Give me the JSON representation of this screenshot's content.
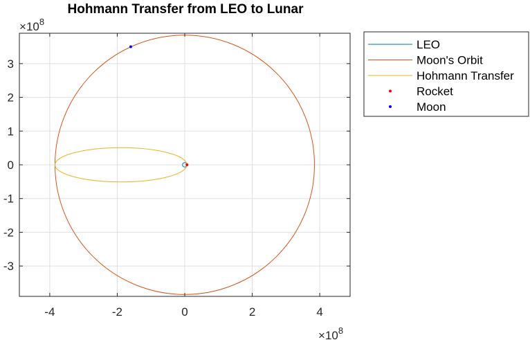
{
  "chart_data": {
    "type": "line",
    "title": "Hohmann Transfer from LEO to Lunar",
    "xlabel": "",
    "ylabel": "",
    "x_exponent": "10",
    "x_exponent_power": "8",
    "y_exponent": "10",
    "y_exponent_power": "8",
    "xlim": [
      -4.9,
      4.9
    ],
    "ylim": [
      -3.9,
      3.9
    ],
    "units_multiplier": 100000000,
    "xticks": [
      -4,
      -2,
      0,
      2,
      4
    ],
    "xtick_labels": [
      "-4",
      "-2",
      "0",
      "2",
      "4"
    ],
    "yticks": [
      -3,
      -2,
      -1,
      0,
      1,
      2,
      3
    ],
    "ytick_labels": [
      "-3",
      "-2",
      "-1",
      "0",
      "1",
      "2",
      "3"
    ],
    "grid": true,
    "legend_position": "outside-top-right",
    "series": [
      {
        "name": "LEO",
        "kind": "circle",
        "color": "#0072BD",
        "center": [
          0,
          0
        ],
        "radius": 0.0669
      },
      {
        "name": "Moon's Orbit",
        "kind": "circle",
        "color": "#D95319",
        "center": [
          0,
          0
        ],
        "radius": 3.844
      },
      {
        "name": "Hohmann Transfer",
        "kind": "ellipse",
        "color": "#EDB120",
        "center": [
          -1.889,
          0
        ],
        "semi_major": 1.955,
        "semi_minor": 0.507
      },
      {
        "name": "Rocket",
        "kind": "point",
        "color": "#FF0000",
        "x": 0.0669,
        "y": 0
      },
      {
        "name": "Moon",
        "kind": "point",
        "color": "#0000FF",
        "x": -1.6,
        "y": 3.5
      }
    ]
  }
}
